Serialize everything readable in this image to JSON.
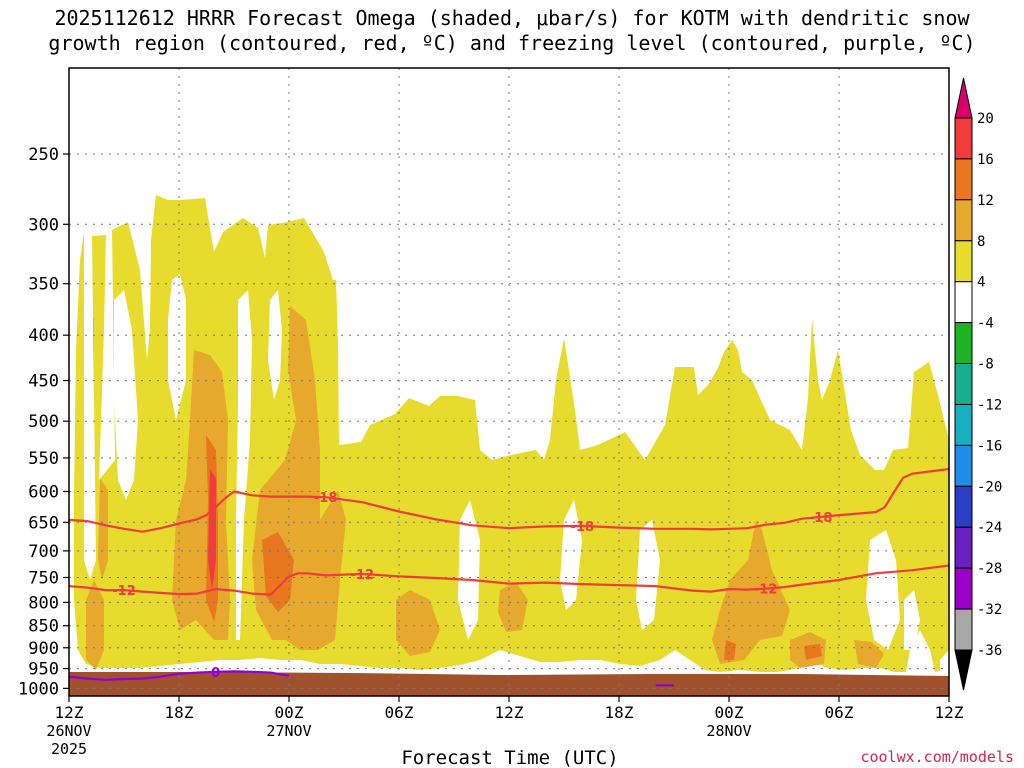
{
  "chart_data": {
    "type": "heatmap",
    "title": [
      "2025112612 HRRR Forecast Omega (shaded, μbar/s) for KOTM with dendritic snow",
      "growth region (contoured, red, ºC) and freezing level (contoured, purple, ºC)"
    ],
    "xlabel": "Forecast Time (UTC)",
    "ylabel": "",
    "x_ticks": [
      {
        "hour": 0,
        "label": "12Z",
        "sub": [
          "26NOV",
          "2025"
        ]
      },
      {
        "hour": 6,
        "label": "18Z",
        "sub": []
      },
      {
        "hour": 12,
        "label": "00Z",
        "sub": [
          "27NOV"
        ]
      },
      {
        "hour": 18,
        "label": "06Z",
        "sub": []
      },
      {
        "hour": 24,
        "label": "12Z",
        "sub": []
      },
      {
        "hour": 30,
        "label": "18Z",
        "sub": []
      },
      {
        "hour": 36,
        "label": "00Z",
        "sub": [
          "28NOV"
        ]
      },
      {
        "hour": 42,
        "label": "06Z",
        "sub": []
      },
      {
        "hour": 48,
        "label": "12Z",
        "sub": []
      }
    ],
    "xlim": [
      0,
      48
    ],
    "y_ticks": [
      250,
      300,
      350,
      400,
      450,
      500,
      550,
      600,
      650,
      700,
      750,
      800,
      850,
      900,
      950,
      1000
    ],
    "ylim_hPa": [
      1020,
      200
    ],
    "colorbar": {
      "labels": [
        "20",
        "16",
        "12",
        "8",
        "4",
        "-4",
        "-8",
        "-12",
        "-16",
        "-20",
        "-24",
        "-28",
        "-32",
        "-36"
      ],
      "colors": [
        "#d9006e",
        "#f03c3c",
        "#e8771f",
        "#e6a92e",
        "#e7dc2d",
        "#ffffff",
        "#1fb325",
        "#18b08c",
        "#18b0c0",
        "#1e8ee8",
        "#2a3ec8",
        "#6a1fc0",
        "#9a00c8",
        "#a8a8a8",
        "#000000"
      ]
    },
    "colors": {
      "omega_4_8": "#e7dc2d",
      "omega_8_12": "#e6a92e",
      "omega_12_16": "#e8771f",
      "omega_16_20": "#f03c3c",
      "terrain": "#a0522d",
      "dgz_contour": "#f03c3c",
      "freezing_contour": "#9400d3"
    },
    "contours": [
      {
        "name": "dgz-minus18",
        "label": "-18",
        "color": "#f03c3c",
        "points": [
          [
            0,
            646
          ],
          [
            1,
            648
          ],
          [
            2,
            655
          ],
          [
            3,
            661
          ],
          [
            4,
            666
          ],
          [
            5,
            660
          ],
          [
            6,
            652
          ],
          [
            7,
            645
          ],
          [
            7.5,
            638
          ],
          [
            8,
            625
          ],
          [
            8.5,
            611
          ],
          [
            9,
            600
          ],
          [
            9.5,
            603
          ],
          [
            10,
            606
          ],
          [
            11,
            608
          ],
          [
            12,
            608
          ],
          [
            13,
            608
          ],
          [
            14,
            609
          ],
          [
            16,
            617
          ],
          [
            18,
            632
          ],
          [
            20,
            645
          ],
          [
            22,
            655
          ],
          [
            24,
            660
          ],
          [
            26,
            657
          ],
          [
            28,
            656
          ],
          [
            30,
            659
          ],
          [
            32,
            661
          ],
          [
            34,
            661
          ],
          [
            35,
            662
          ],
          [
            36,
            661
          ],
          [
            37,
            660
          ],
          [
            38,
            654
          ],
          [
            39,
            651
          ],
          [
            40,
            644
          ],
          [
            42,
            638
          ],
          [
            44,
            633
          ],
          [
            44.5,
            625
          ],
          [
            45,
            601
          ],
          [
            45.5,
            579
          ],
          [
            46,
            573
          ],
          [
            48,
            566
          ]
        ],
        "label_hours": [
          14,
          28,
          41
        ]
      },
      {
        "name": "dgz-minus12",
        "label": "-12",
        "color": "#f03c3c",
        "points": [
          [
            0,
            767
          ],
          [
            1,
            770
          ],
          [
            2,
            775
          ],
          [
            3,
            775
          ],
          [
            4,
            778
          ],
          [
            6,
            783
          ],
          [
            7,
            782
          ],
          [
            8,
            773
          ],
          [
            9,
            776
          ],
          [
            10,
            782
          ],
          [
            11,
            784
          ],
          [
            11.5,
            766
          ],
          [
            12,
            748
          ],
          [
            12.5,
            742
          ],
          [
            13,
            742
          ],
          [
            14,
            746
          ],
          [
            16,
            743
          ],
          [
            18,
            748
          ],
          [
            20,
            751
          ],
          [
            22,
            755
          ],
          [
            24,
            762
          ],
          [
            26,
            760
          ],
          [
            28,
            763
          ],
          [
            30,
            765
          ],
          [
            32,
            767
          ],
          [
            34,
            776
          ],
          [
            35,
            778
          ],
          [
            36,
            773
          ],
          [
            37,
            774
          ],
          [
            38,
            772
          ],
          [
            39,
            769
          ],
          [
            40,
            764
          ],
          [
            42,
            755
          ],
          [
            44,
            742
          ],
          [
            46,
            736
          ],
          [
            48,
            727
          ]
        ],
        "label_hours": [
          3,
          16,
          38
        ]
      },
      {
        "name": "freezing-level-0",
        "label": "0",
        "color": "#9400d3",
        "points": [
          [
            0,
            970
          ],
          [
            1,
            975
          ],
          [
            2,
            978
          ],
          [
            3,
            976
          ],
          [
            4,
            975
          ],
          [
            5,
            970
          ],
          [
            6,
            963
          ],
          [
            7,
            960
          ],
          [
            8,
            958
          ],
          [
            9,
            957
          ],
          [
            10,
            958
          ],
          [
            11,
            960
          ],
          [
            12,
            968
          ]
        ],
        "label_hours": [
          8
        ]
      },
      {
        "name": "freezing-level-0-b",
        "label": "",
        "color": "#9400d3",
        "points": [
          [
            32,
            992
          ],
          [
            33,
            992
          ]
        ],
        "label_hours": []
      }
    ]
  },
  "credit": "coolwx.com/models"
}
